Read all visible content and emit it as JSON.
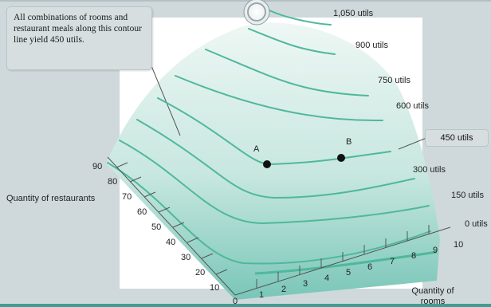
{
  "callout": {
    "text": "All combinations of rooms and restaurant meals along this contour line yield 450 utils."
  },
  "contours": [
    {
      "label": "1,050 utils"
    },
    {
      "label": "900 utils"
    },
    {
      "label": "750 utils"
    },
    {
      "label": "600 utils"
    },
    {
      "label": "450 utils"
    },
    {
      "label": "300 utils"
    },
    {
      "label": "150 utils"
    },
    {
      "label": "0 utils"
    }
  ],
  "points": [
    {
      "label": "A"
    },
    {
      "label": "B"
    }
  ],
  "axes": {
    "rooms_label_line1": "Quantity of",
    "rooms_label_line2": "rooms",
    "restaurants_label": "Quantity of restaurants",
    "rooms_ticks": [
      "0",
      "1",
      "2",
      "3",
      "4",
      "5",
      "6",
      "7",
      "8",
      "9",
      "10"
    ],
    "restaurant_ticks": [
      "10",
      "20",
      "30",
      "40",
      "50",
      "60",
      "70",
      "80",
      "90"
    ]
  },
  "colors": {
    "contour": "#4fb89b",
    "surface_top": "#e6f3ef",
    "surface_bottom": "#7ec9bc",
    "accent_bar": "#3f9d94"
  },
  "icons": {
    "top_circle": "circle-icon"
  }
}
